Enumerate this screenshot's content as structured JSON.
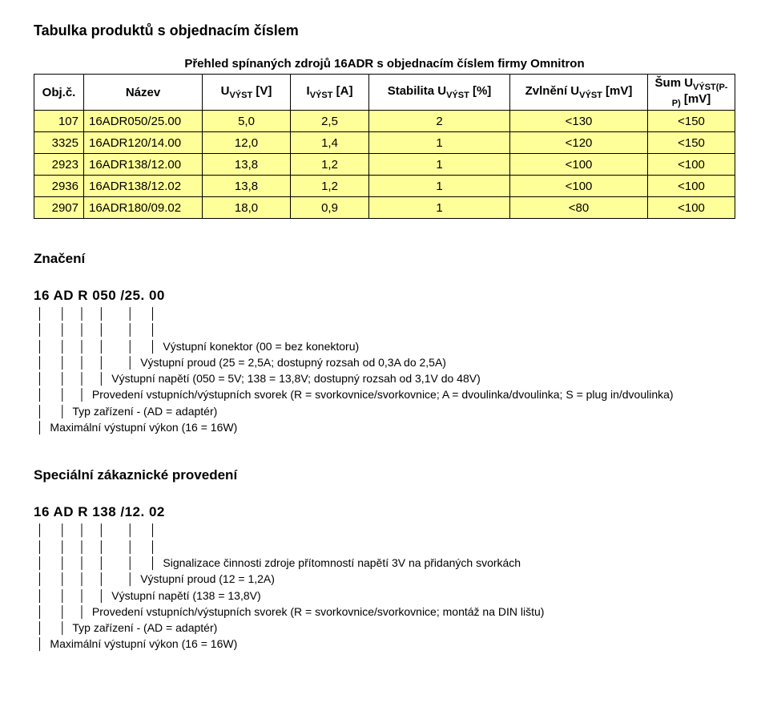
{
  "heading": "Tabulka produktů s objednacím číslem",
  "subtitle": "Přehled spínaných zdrojů 16ADR s objednacím číslem firmy Omnitron",
  "table": {
    "col_widths": [
      "62px",
      "148px",
      "110px",
      "98px",
      "176px",
      "172px",
      "auto"
    ],
    "row_bg": "#ffff99",
    "headers": {
      "c0": "Obj.č.",
      "c1": "Název",
      "c2_pre": "U",
      "c2_sub": "VÝST",
      "c2_post": " [V]",
      "c3_pre": "I",
      "c3_sub": "VÝST",
      "c3_post": " [A]",
      "c4_pre": "Stabilita U",
      "c4_sub": "VÝST",
      "c4_post": " [%]",
      "c5_pre": "Zvlnění U",
      "c5_sub": "VÝST",
      "c5_post": " [mV]",
      "c6_pre": "Šum U",
      "c6_sub": "VÝST(P-P)",
      "c6_post": " [mV]"
    },
    "rows": [
      {
        "obj": "107",
        "name": "16ADR050/25.00",
        "u": "5,0",
        "i": "2,5",
        "stab": "2",
        "zvl": "<130",
        "sum": "<150"
      },
      {
        "obj": "3325",
        "name": "16ADR120/14.00",
        "u": "12,0",
        "i": "1,4",
        "stab": "1",
        "zvl": "<120",
        "sum": "<150"
      },
      {
        "obj": "2923",
        "name": "16ADR138/12.00",
        "u": "13,8",
        "i": "1,2",
        "stab": "1",
        "zvl": "<100",
        "sum": "<100"
      },
      {
        "obj": "2936",
        "name": "16ADR138/12.02",
        "u": "13,8",
        "i": "1,2",
        "stab": "1",
        "zvl": "<100",
        "sum": "<100"
      },
      {
        "obj": "2907",
        "name": "16ADR180/09.02",
        "u": "18,0",
        "i": "0,9",
        "stab": "1",
        "zvl": "<80",
        "sum": "<100"
      }
    ]
  },
  "sections": [
    {
      "title": "Značení",
      "code": "16  AD  R  050  /25. 00",
      "lines": [
        " │     │    │    │       │     │",
        " │     │    │    │       │     │",
        " │     │    │    │       │     │  Výstupní konektor (00 = bez konektoru)",
        " │     │    │    │       │  Výstupní proud (25 = 2,5A; dostupný rozsah od 0,3A do 2,5A)",
        " │     │    │    │  Výstupní napětí (050 = 5V; 138 = 13,8V; dostupný rozsah od 3,1V do 48V)",
        " │     │    │  Provedení vstupních/výstupních svorek (R = svorkovnice/svorkovnice; A = dvoulinka/dvoulinka; S = plug in/dvoulinka)",
        " │     │  Typ zařízení - (AD = adaptér)",
        " │  Maximální výstupní výkon (16 = 16W)"
      ],
      "footer": ""
    },
    {
      "title": "Speciální zákaznické provedení",
      "code": "16  AD  R  138  /12. 02",
      "lines": [
        " │     │    │    │       │     │",
        " │     │    │    │       │     │",
        " │     │    │    │       │     │  Signalizace činnosti zdroje přítomností napětí 3V na přidaných svorkách",
        " │     │    │    │       │  Výstupní proud (12 = 1,2A)",
        " │     │    │    │  Výstupní napětí (138 = 13,8V)",
        " │     │    │  Provedení vstupních/výstupních svorek (R = svorkovnice/svorkovnice; montáž na DIN lištu)",
        " │     │  Typ zařízení - (AD = adaptér)",
        " │  Maximální výstupní výkon (16 = 16W)"
      ],
      "footer": ""
    }
  ]
}
